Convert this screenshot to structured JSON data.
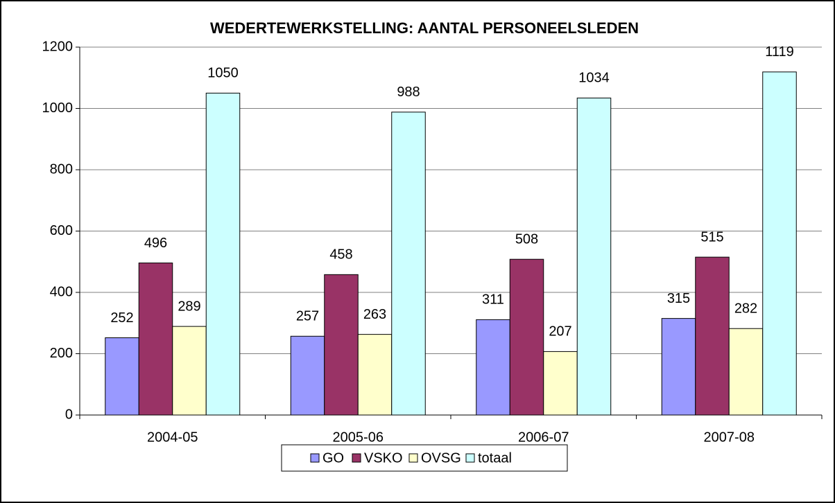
{
  "chart_data": {
    "type": "bar",
    "title": "WEDERTEWERKSTELLING: AANTAL PERSONEELSLEDEN",
    "categories": [
      "2004-05",
      "2005-06",
      "2006-07",
      "2007-08"
    ],
    "series": [
      {
        "name": "GO",
        "color": "#9999ff",
        "values": [
          252,
          257,
          311,
          315
        ]
      },
      {
        "name": "VSKO",
        "color": "#993366",
        "values": [
          496,
          458,
          508,
          515
        ]
      },
      {
        "name": "OVSG",
        "color": "#ffffcc",
        "values": [
          289,
          263,
          207,
          282
        ]
      },
      {
        "name": "totaal",
        "color": "#ccffff",
        "values": [
          1050,
          988,
          1034,
          1119
        ]
      }
    ],
    "ylim": [
      0,
      1200
    ],
    "yticks": [
      0,
      200,
      400,
      600,
      800,
      1000,
      1200
    ],
    "grid": true,
    "legend": "bottom"
  }
}
